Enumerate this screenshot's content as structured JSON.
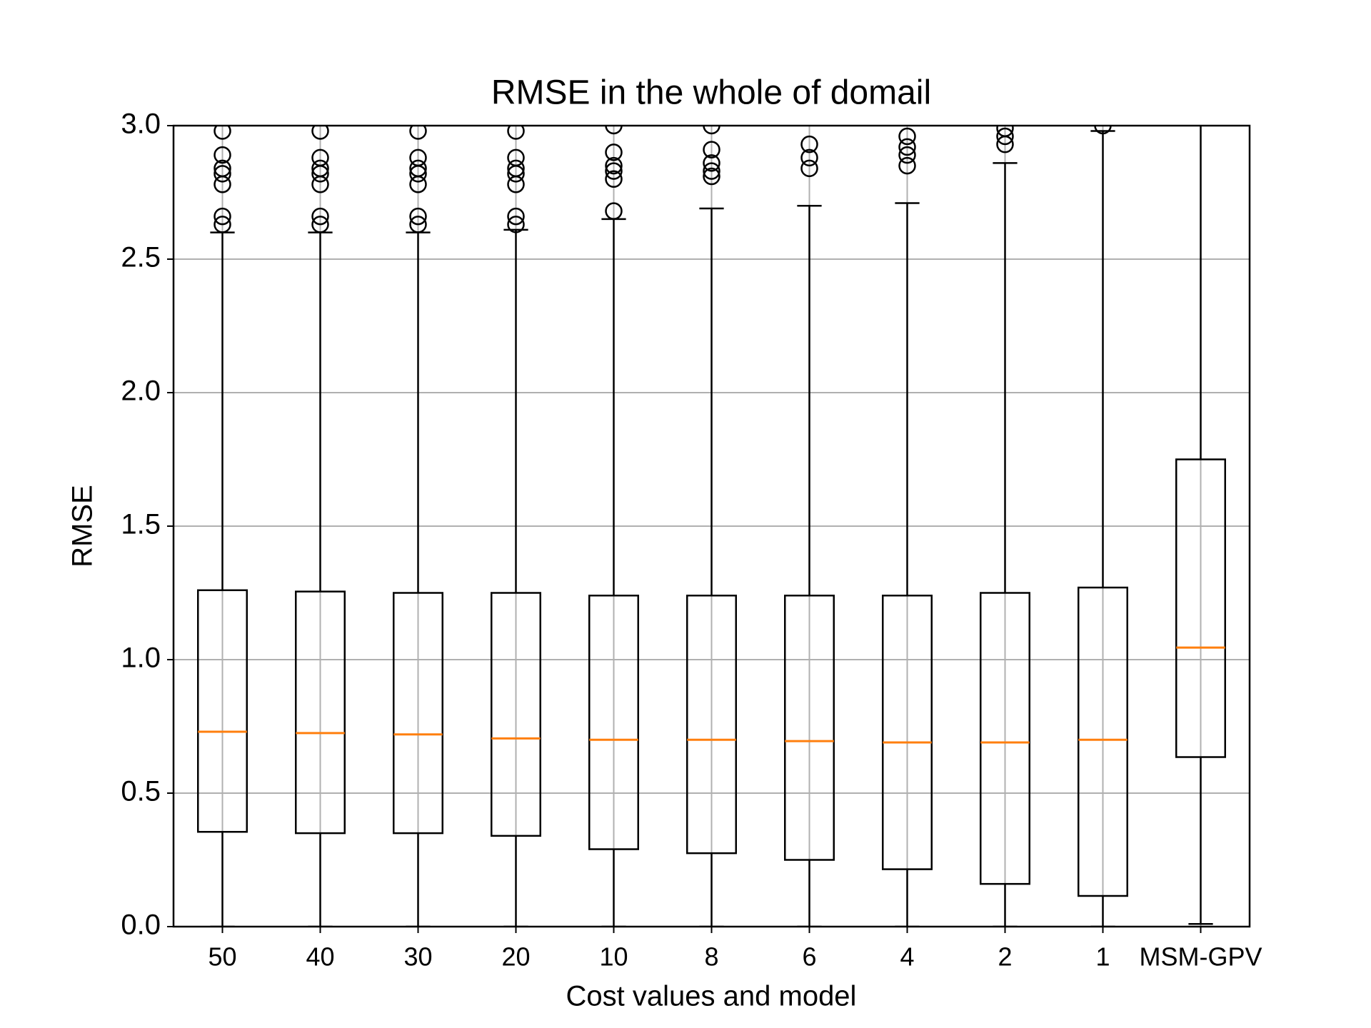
{
  "chart_data": {
    "type": "box",
    "title": "RMSE in the whole of domail",
    "xlabel": "Cost values and model",
    "ylabel": "RMSE",
    "categories": [
      "50",
      "40",
      "30",
      "20",
      "10",
      "8",
      "6",
      "4",
      "2",
      "1",
      "MSM-GPV"
    ],
    "boxes": [
      {
        "whislo": 0,
        "q1": 0.355,
        "med": 0.73,
        "q3": 1.26,
        "whishi": 2.6,
        "fliers": [
          2.63,
          2.66,
          2.78,
          2.82,
          2.84,
          2.89,
          2.98
        ]
      },
      {
        "whislo": 0,
        "q1": 0.35,
        "med": 0.725,
        "q3": 1.255,
        "whishi": 2.6,
        "fliers": [
          2.63,
          2.66,
          2.78,
          2.82,
          2.84,
          2.88,
          2.98
        ]
      },
      {
        "whislo": 0,
        "q1": 0.35,
        "med": 0.72,
        "q3": 1.25,
        "whishi": 2.6,
        "fliers": [
          2.63,
          2.66,
          2.78,
          2.82,
          2.84,
          2.88,
          2.98
        ]
      },
      {
        "whislo": 0,
        "q1": 0.34,
        "med": 0.705,
        "q3": 1.25,
        "whishi": 2.61,
        "fliers": [
          2.63,
          2.66,
          2.78,
          2.82,
          2.84,
          2.88,
          2.98
        ]
      },
      {
        "whislo": 0,
        "q1": 0.29,
        "med": 0.7,
        "q3": 1.24,
        "whishi": 2.65,
        "fliers": [
          2.68,
          2.8,
          2.83,
          2.85,
          2.9,
          3.0
        ]
      },
      {
        "whislo": 0,
        "q1": 0.275,
        "med": 0.7,
        "q3": 1.24,
        "whishi": 2.69,
        "fliers": [
          2.81,
          2.83,
          2.86,
          2.91,
          3.0
        ]
      },
      {
        "whislo": 0,
        "q1": 0.25,
        "med": 0.695,
        "q3": 1.24,
        "whishi": 2.7,
        "fliers": [
          2.84,
          2.88,
          2.93
        ]
      },
      {
        "whislo": 0,
        "q1": 0.215,
        "med": 0.69,
        "q3": 1.24,
        "whishi": 2.71,
        "fliers": [
          2.85,
          2.89,
          2.92,
          2.96
        ]
      },
      {
        "whislo": 0,
        "q1": 0.16,
        "med": 0.69,
        "q3": 1.25,
        "whishi": 2.86,
        "fliers": [
          2.93,
          2.96,
          2.99
        ]
      },
      {
        "whislo": 0,
        "q1": 0.115,
        "med": 0.7,
        "q3": 1.27,
        "whishi": 2.98,
        "fliers": [
          3.0
        ]
      },
      {
        "whislo": 0.01,
        "q1": 0.635,
        "med": 1.045,
        "q3": 1.75,
        "whishi": null,
        "fliers": []
      }
    ],
    "box_color": "#000000",
    "median_color": "#ff7f0e",
    "grid": true,
    "ylim": [
      0,
      3
    ],
    "yticks": [
      {
        "value": 0,
        "label": "0.0"
      },
      {
        "value": 0.5,
        "label": "0.5"
      },
      {
        "value": 1,
        "label": "1.0"
      },
      {
        "value": 1.5,
        "label": "1.5"
      },
      {
        "value": 2,
        "label": "2.0"
      },
      {
        "value": 2.5,
        "label": "2.5"
      },
      {
        "value": 3,
        "label": "3.0"
      }
    ]
  }
}
